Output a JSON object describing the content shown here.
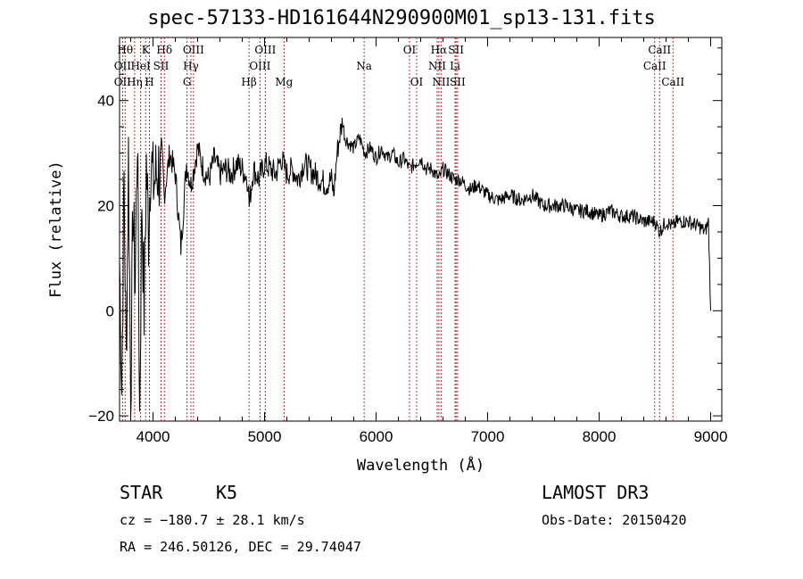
{
  "chart_data": {
    "type": "line",
    "title": "spec-57133-HD161644N290900M01_sp13-131.fits",
    "xlabel": "Wavelength (Å)",
    "ylabel": "Flux (relative)",
    "xlim": [
      3700,
      9100
    ],
    "ylim": [
      -21,
      52
    ],
    "x_ticks": [
      4000,
      5000,
      6000,
      7000,
      8000,
      9000
    ],
    "y_ticks": [
      -20,
      0,
      20,
      40
    ],
    "grid": false,
    "series": [
      {
        "name": "spectrum",
        "x": [
          3700,
          3720,
          3740,
          3760,
          3780,
          3800,
          3820,
          3840,
          3860,
          3880,
          3900,
          3920,
          3940,
          3960,
          3980,
          4000,
          4050,
          4100,
          4150,
          4200,
          4250,
          4300,
          4340,
          4400,
          4450,
          4500,
          4550,
          4600,
          4650,
          4700,
          4750,
          4800,
          4850,
          4862,
          4900,
          4950,
          5000,
          5050,
          5100,
          5150,
          5200,
          5250,
          5300,
          5350,
          5400,
          5450,
          5500,
          5550,
          5600,
          5620,
          5650,
          5680,
          5700,
          5720,
          5750,
          5800,
          5850,
          5900,
          5950,
          6000,
          6050,
          6100,
          6150,
          6200,
          6250,
          6300,
          6350,
          6400,
          6450,
          6500,
          6563,
          6600,
          6650,
          6700,
          6750,
          6800,
          6850,
          6900,
          7000,
          7100,
          7200,
          7300,
          7400,
          7500,
          7600,
          7700,
          7800,
          7900,
          8000,
          8100,
          8200,
          8300,
          8400,
          8500,
          8542,
          8600,
          8662,
          8700,
          8800,
          8900,
          8950,
          8980,
          9000
        ],
        "values": [
          10,
          -15,
          25,
          -10,
          30,
          -18,
          20,
          5,
          35,
          -20,
          22,
          0,
          28,
          15,
          30,
          24,
          27,
          22,
          30,
          26,
          12,
          28,
          24,
          31,
          27,
          25,
          29,
          26,
          27,
          26,
          28,
          27,
          25,
          20,
          27,
          25,
          28,
          27,
          26,
          29,
          26,
          27,
          25,
          28,
          27,
          26,
          25,
          24,
          25,
          22,
          30,
          34,
          36,
          33,
          32,
          31,
          33,
          30,
          31,
          29,
          31,
          29,
          30,
          28,
          29,
          27,
          28,
          29,
          27,
          27,
          25,
          27,
          26,
          25,
          25,
          24,
          23,
          24,
          22,
          21,
          22,
          21,
          22,
          20,
          20,
          20,
          19,
          19,
          18,
          19,
          18,
          18,
          17,
          17,
          15,
          17,
          16,
          17,
          17,
          16,
          15,
          17,
          0
        ]
      }
    ],
    "line_labels": [
      {
        "name": "OII",
        "x": 3727,
        "row": 3
      },
      {
        "name": "Hθ",
        "x": 3750,
        "row": 1
      },
      {
        "name": "OII",
        "x": 3727,
        "row": 2
      },
      {
        "name": "Hη",
        "x": 3835,
        "row": 3
      },
      {
        "name": "K",
        "x": 3934,
        "row": 1
      },
      {
        "name": "HeI",
        "x": 3889,
        "row": 2
      },
      {
        "name": "SII",
        "x": 4072,
        "row": 2
      },
      {
        "name": "H",
        "x": 3968,
        "row": 3
      },
      {
        "name": "Hδ",
        "x": 4102,
        "row": 1
      },
      {
        "name": "OIII",
        "x": 4363,
        "row": 1
      },
      {
        "name": "Hγ",
        "x": 4340,
        "row": 2
      },
      {
        "name": "G",
        "x": 4305,
        "row": 3
      },
      {
        "name": "Hβ",
        "x": 4861,
        "row": 3
      },
      {
        "name": "OIII",
        "x": 5007,
        "row": 1
      },
      {
        "name": "OIII",
        "x": 4959,
        "row": 2
      },
      {
        "name": "Mg",
        "x": 5175,
        "row": 3
      },
      {
        "name": "Na",
        "x": 5893,
        "row": 2
      },
      {
        "name": "OI",
        "x": 6300,
        "row": 1
      },
      {
        "name": "OI",
        "x": 6364,
        "row": 3
      },
      {
        "name": "Hα",
        "x": 6563,
        "row": 1
      },
      {
        "name": "SII",
        "x": 6717,
        "row": 1
      },
      {
        "name": "NII",
        "x": 6548,
        "row": 2
      },
      {
        "name": "Li",
        "x": 6708,
        "row": 2
      },
      {
        "name": "NII",
        "x": 6583,
        "row": 3
      },
      {
        "name": "SII",
        "x": 6731,
        "row": 3
      },
      {
        "name": "CaII",
        "x": 8542,
        "row": 1
      },
      {
        "name": "CaII",
        "x": 8498,
        "row": 2
      },
      {
        "name": "CaII",
        "x": 8662,
        "row": 3
      }
    ],
    "marker_lines": [
      3727,
      3750,
      3835,
      3889,
      3934,
      3968,
      4072,
      4102,
      4305,
      4340,
      4363,
      4861,
      4959,
      5007,
      5175,
      5893,
      6300,
      6364,
      6548,
      6563,
      6583,
      6708,
      6717,
      6731,
      8498,
      8542,
      8662
    ]
  },
  "info": {
    "object_class": "STAR",
    "subclass": "K5",
    "survey": "LAMOST DR3",
    "cz": "cz = −180.7 ± 28.1 km/s",
    "obs_date": "Obs-Date: 20150420",
    "coords": "RA = 246.50126, DEC =  29.74047"
  },
  "colors": {
    "axis": "#000000",
    "spectrum": "#000000",
    "marker": "#b03030"
  }
}
